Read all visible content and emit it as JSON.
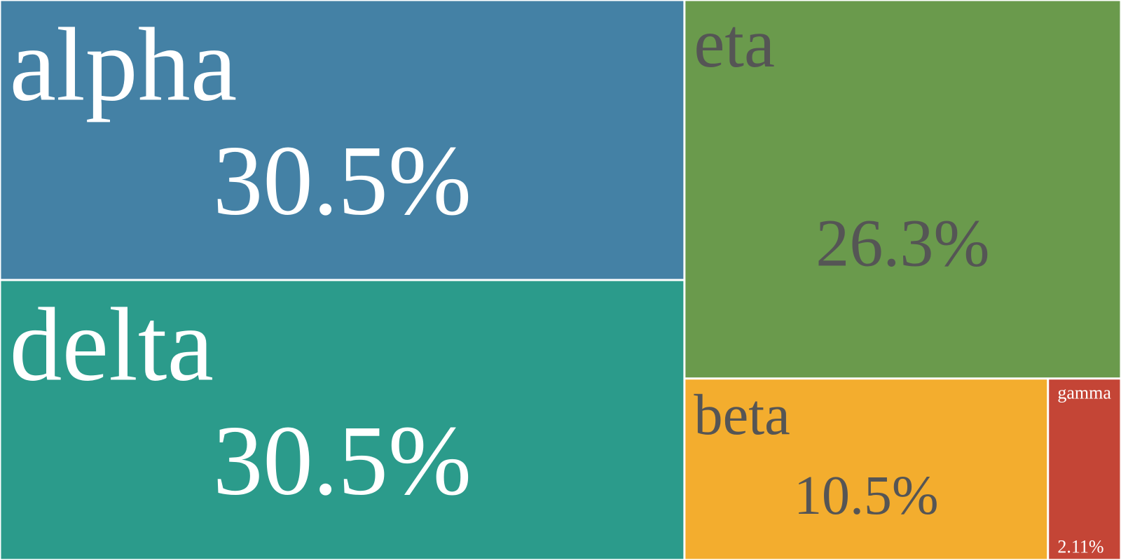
{
  "chart_data": {
    "type": "treemap",
    "title": "",
    "series": [
      {
        "name": "",
        "items": [
          {
            "label": "alpha",
            "value": 30.5,
            "display": "30.5%",
            "color": "#4481a5",
            "text_color": "#ffffff"
          },
          {
            "label": "delta",
            "value": 30.5,
            "display": "30.5%",
            "color": "#2b9b8b",
            "text_color": "#ffffff"
          },
          {
            "label": "eta",
            "value": 26.3,
            "display": "26.3%",
            "color": "#6a9a4c",
            "text_color": "#555555"
          },
          {
            "label": "beta",
            "value": 10.5,
            "display": "10.5%",
            "color": "#f3ad2e",
            "text_color": "#555555"
          },
          {
            "label": "gamma",
            "value": 2.11,
            "display": "2.11%",
            "color": "#c44536",
            "text_color": "#ffffff"
          }
        ]
      }
    ]
  }
}
